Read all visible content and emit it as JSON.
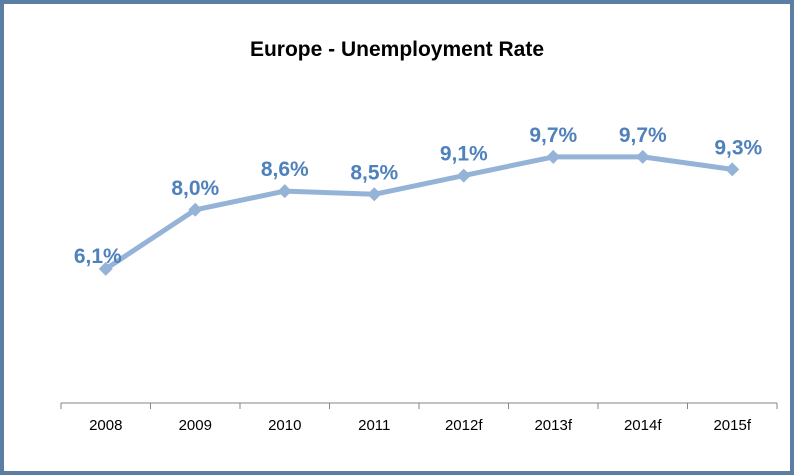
{
  "chart_data": {
    "type": "line",
    "title": "Europe - Unemployment Rate",
    "categories": [
      "2008",
      "2009",
      "2010",
      "2011",
      "2012f",
      "2013f",
      "2014f",
      "2015f"
    ],
    "values": [
      6.1,
      8.0,
      8.6,
      8.5,
      9.1,
      9.7,
      9.7,
      9.3
    ],
    "data_labels": [
      "6,1%",
      "8,0%",
      "8,6%",
      "8,5%",
      "9,1%",
      "9,7%",
      "9,7%",
      "9,3%"
    ],
    "xlabel": "",
    "ylabel": "",
    "y_axis_visible": false,
    "grid": false,
    "legend": "none"
  },
  "colors": {
    "line": "#95b3d7",
    "label": "#4f81bd",
    "axis": "#868686",
    "border": "#5b7fa3"
  }
}
